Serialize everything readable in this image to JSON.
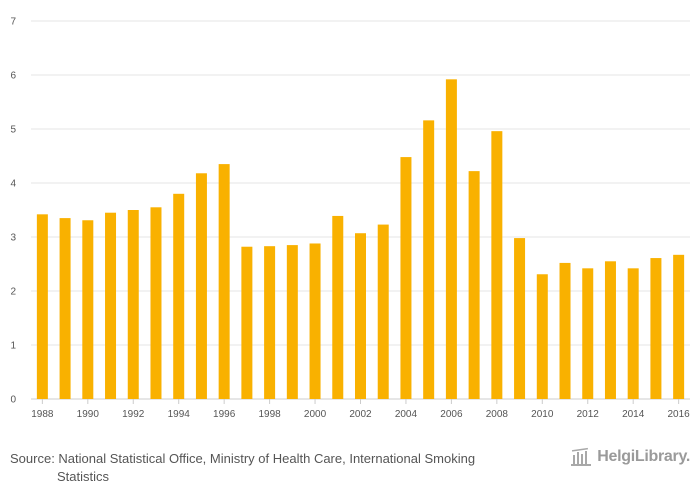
{
  "chart_data": {
    "type": "bar",
    "categories": [
      "1988",
      "1989",
      "1990",
      "1991",
      "1992",
      "1993",
      "1994",
      "1995",
      "1996",
      "1997",
      "1998",
      "1999",
      "2000",
      "2001",
      "2002",
      "2003",
      "2004",
      "2005",
      "2006",
      "2007",
      "2008",
      "2009",
      "2010",
      "2011",
      "2012",
      "2013",
      "2014",
      "2015",
      "2016"
    ],
    "values": [
      3.42,
      3.35,
      3.31,
      3.45,
      3.5,
      3.55,
      3.8,
      4.18,
      4.35,
      2.82,
      2.83,
      2.85,
      2.88,
      3.39,
      3.07,
      3.23,
      4.48,
      5.16,
      5.92,
      4.22,
      4.96,
      2.98,
      2.31,
      2.52,
      2.42,
      2.55,
      2.42,
      2.61,
      2.67
    ],
    "x_tick_labels": [
      "1988",
      "1990",
      "1992",
      "1994",
      "1996",
      "1998",
      "2000",
      "2002",
      "2004",
      "2006",
      "2008",
      "2010",
      "2012",
      "2014",
      "2016"
    ],
    "y_ticks": [
      0,
      1,
      2,
      3,
      4,
      5,
      6,
      7
    ],
    "ylim": [
      0,
      7
    ],
    "title": "",
    "xlabel": "",
    "ylabel": "",
    "grid": true,
    "bar_color": "#f9b100"
  },
  "footer": {
    "source_line1": "Source: National Statistical Office, Ministry of Health Care, International Smoking",
    "source_line2": "Statistics",
    "brand": "HelgiLibrary."
  }
}
